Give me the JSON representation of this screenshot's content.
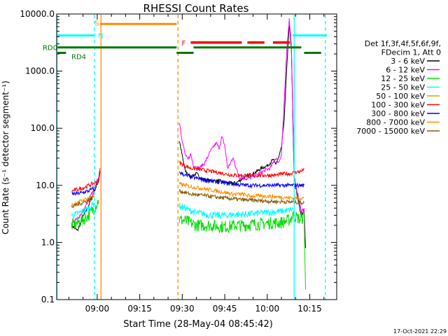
{
  "chart_data": {
    "type": "line",
    "title": "RHESSI Count Rates",
    "xlabel": "Start Time (28-May-04 08:45:42)",
    "ylabel": "Count Rate (s⁻¹ detector segment⁻¹)",
    "yscale": "log",
    "ylim": [
      0.1,
      10000
    ],
    "xlim": [
      "08:45:42",
      "10:24:30"
    ],
    "x_ticks": [
      "09:00",
      "09:15",
      "09:30",
      "09:45",
      "10:00",
      "10:15"
    ],
    "y_ticks": [
      "0.1",
      "1.0",
      "10.0",
      "100.0",
      "1000.0",
      "10000.0"
    ],
    "legend": {
      "position": "right",
      "header": [
        "Det 1f,3f,4f,5f,6f,9f,",
        "FDecim 1, Att 0"
      ],
      "entries": [
        {
          "name": "3 - 6 keV",
          "color": "#000000"
        },
        {
          "name": "6 - 12 keV",
          "color": "#ff00ff"
        },
        {
          "name": "12 - 25 keV",
          "color": "#00dd00"
        },
        {
          "name": "25 - 50 keV",
          "color": "#00ffff"
        },
        {
          "name": "50 - 100 keV",
          "color": "#b5b500"
        },
        {
          "name": "100 - 300 keV",
          "color": "#ff0000"
        },
        {
          "name": "300 - 800 keV",
          "color": "#0000ff"
        },
        {
          "name": "800 - 7000 keV",
          "color": "#ff8c00"
        },
        {
          "name": "7000 - 15000 keV",
          "color": "#8b5a00"
        }
      ]
    },
    "flags": {
      "saa": {
        "label": "S",
        "color": "#ff8c00",
        "start": "09:01",
        "end": "09:28"
      },
      "night": {
        "label": "N",
        "color": "#00ffff",
        "segments": [
          [
            "08:46",
            "08:59"
          ],
          [
            "10:09",
            "10:21"
          ]
        ]
      },
      "flare": {
        "label": "F",
        "color": "#ff0000",
        "segments": [
          [
            "09:33",
            "09:51"
          ],
          [
            "09:53",
            "09:59"
          ],
          [
            "10:02",
            "10:08"
          ]
        ]
      },
      "rd0": {
        "label": "RD0",
        "color": "#007700",
        "segments": [
          [
            "08:46",
            "09:28"
          ],
          [
            "09:34",
            "10:12"
          ]
        ]
      },
      "rd4": {
        "label": "RD4",
        "color": "#007700",
        "segments": [
          [
            "08:46",
            "08:49"
          ],
          [
            "09:28",
            "09:34"
          ],
          [
            "10:13",
            "10:19"
          ]
        ]
      }
    },
    "vlines": [
      {
        "t": "08:45:48",
        "color": "#00ffff",
        "style": "solid"
      },
      {
        "t": "08:59:00",
        "color": "#00ffff",
        "style": "dashed"
      },
      {
        "t": "09:01:20",
        "color": "#ff8c00",
        "style": "solid"
      },
      {
        "t": "09:28:30",
        "color": "#ff8c00",
        "style": "dashed"
      },
      {
        "t": "10:09:30",
        "color": "#00ffff",
        "style": "solid"
      },
      {
        "t": "10:20:30",
        "color": "#00ffff",
        "style": "dashed"
      }
    ],
    "series": [
      {
        "name": "3 - 6 keV",
        "color": "#000000",
        "points": [
          [
            "08:51:00",
            2.0
          ],
          [
            "08:53:00",
            1.6
          ],
          [
            "08:55:00",
            2.8
          ],
          [
            "08:57:00",
            4.5
          ],
          [
            "08:59:00",
            8
          ],
          [
            "09:00:30",
            12
          ],
          [
            "09:01:00",
            18
          ],
          [
            "09:29:00",
            60
          ],
          [
            "09:31:00",
            18
          ],
          [
            "09:33:00",
            14
          ],
          [
            "09:35:00",
            16
          ],
          [
            "09:37:00",
            13
          ],
          [
            "09:40:00",
            12
          ],
          [
            "09:43:00",
            12
          ],
          [
            "09:46:00",
            11
          ],
          [
            "09:49:00",
            11
          ],
          [
            "09:52:00",
            14
          ],
          [
            "09:55:00",
            16
          ],
          [
            "09:58:00",
            20
          ],
          [
            "10:00:00",
            22
          ],
          [
            "10:02:00",
            28
          ],
          [
            "10:03:00",
            24
          ],
          [
            "10:04:00",
            30
          ],
          [
            "10:05:00",
            45
          ],
          [
            "10:06:00",
            150
          ],
          [
            "10:07:00",
            1500
          ],
          [
            "10:07:45",
            6500
          ],
          [
            "10:08:30",
            2500
          ],
          [
            "10:09:30",
            12
          ],
          [
            "10:12:00",
            3.0
          ],
          [
            "10:13:00",
            3.5
          ],
          [
            "10:13:30",
            0.8
          ]
        ]
      },
      {
        "name": "6 - 12 keV",
        "color": "#ff00ff",
        "points": [
          [
            "08:51:00",
            2.2
          ],
          [
            "08:53:00",
            2.6
          ],
          [
            "08:55:00",
            3.5
          ],
          [
            "08:57:00",
            5.5
          ],
          [
            "08:59:00",
            9
          ],
          [
            "09:00:30",
            14
          ],
          [
            "09:01:00",
            20
          ],
          [
            "09:29:00",
            130
          ],
          [
            "09:30:00",
            60
          ],
          [
            "09:31:00",
            35
          ],
          [
            "09:32:00",
            28
          ],
          [
            "09:33:00",
            35
          ],
          [
            "09:34:00",
            22
          ],
          [
            "09:36:00",
            20
          ],
          [
            "09:38:00",
            25
          ],
          [
            "09:40:00",
            40
          ],
          [
            "09:42:00",
            55
          ],
          [
            "09:43:00",
            45
          ],
          [
            "09:44:00",
            70
          ],
          [
            "09:45:00",
            50
          ],
          [
            "09:46:00",
            20
          ],
          [
            "09:48:00",
            30
          ],
          [
            "09:50:00",
            14
          ],
          [
            "09:53:00",
            13
          ],
          [
            "09:56:00",
            15
          ],
          [
            "09:59:00",
            18
          ],
          [
            "10:01:00",
            20
          ],
          [
            "10:03:00",
            30
          ],
          [
            "10:04:00",
            25
          ],
          [
            "10:05:00",
            35
          ],
          [
            "10:06:00",
            300
          ],
          [
            "10:07:00",
            3000
          ],
          [
            "10:07:45",
            8000
          ],
          [
            "10:08:30",
            3000
          ],
          [
            "10:09:30",
            14
          ],
          [
            "10:12:00",
            3.5
          ],
          [
            "10:13:00",
            4
          ],
          [
            "10:13:30",
            1.0
          ]
        ]
      },
      {
        "name": "12 - 25 keV",
        "color": "#00dd00",
        "points": [
          [
            "08:51:00",
            2.0
          ],
          [
            "08:53:00",
            2.2
          ],
          [
            "08:55:00",
            2.5
          ],
          [
            "08:57:00",
            3.0
          ],
          [
            "08:59:00",
            4.0
          ],
          [
            "09:00:30",
            5.5
          ],
          [
            "09:29:00",
            2.5
          ],
          [
            "09:31:00",
            2.4
          ],
          [
            "09:33:00",
            2.2
          ],
          [
            "09:35:00",
            2.0
          ],
          [
            "09:37:00",
            2.0
          ],
          [
            "09:40:00",
            2.0
          ],
          [
            "09:43:00",
            1.9
          ],
          [
            "09:46:00",
            1.9
          ],
          [
            "09:49:00",
            2.0
          ],
          [
            "09:52:00",
            2.0
          ],
          [
            "09:55:00",
            2.1
          ],
          [
            "09:58:00",
            2.1
          ],
          [
            "10:01:00",
            2.2
          ],
          [
            "10:04:00",
            2.2
          ],
          [
            "10:06:00",
            2.3
          ],
          [
            "10:08:00",
            2.5
          ],
          [
            "10:09:00",
            3.0
          ],
          [
            "10:12:00",
            2.5
          ],
          [
            "10:13:00",
            3.0
          ],
          [
            "10:13:30",
            0.15
          ]
        ]
      },
      {
        "name": "25 - 50 keV",
        "color": "#00ffff",
        "points": [
          [
            "08:51:00",
            3.0
          ],
          [
            "08:53:00",
            3.2
          ],
          [
            "08:55:00",
            3.5
          ],
          [
            "08:57:00",
            4.0
          ],
          [
            "08:59:00",
            5.0
          ],
          [
            "09:29:00",
            4.3
          ],
          [
            "09:31:00",
            4.0
          ],
          [
            "09:33:00",
            3.6
          ],
          [
            "09:35:00",
            3.3
          ],
          [
            "09:37:00",
            3.2
          ],
          [
            "09:40:00",
            3.0
          ],
          [
            "09:43:00",
            3.0
          ],
          [
            "09:46:00",
            3.0
          ],
          [
            "09:49:00",
            3.1
          ],
          [
            "09:52:00",
            3.1
          ],
          [
            "09:55:00",
            3.2
          ],
          [
            "09:58:00",
            3.3
          ],
          [
            "10:01:00",
            3.4
          ],
          [
            "10:04:00",
            3.5
          ],
          [
            "10:07:00",
            3.6
          ],
          [
            "10:09:00",
            3.8
          ]
        ]
      },
      {
        "name": "100 - 300 keV",
        "color": "#ff0000",
        "points": [
          [
            "08:51:00",
            8
          ],
          [
            "08:53:00",
            8.5
          ],
          [
            "08:55:00",
            9
          ],
          [
            "08:57:00",
            10
          ],
          [
            "08:59:00",
            11
          ],
          [
            "09:00:30",
            12
          ],
          [
            "09:29:00",
            25
          ],
          [
            "09:31:00",
            22
          ],
          [
            "09:33:00",
            20
          ],
          [
            "09:36:00",
            19
          ],
          [
            "09:39:00",
            18
          ],
          [
            "09:42:00",
            17
          ],
          [
            "09:45:00",
            16
          ],
          [
            "09:48:00",
            15
          ],
          [
            "09:51:00",
            15
          ],
          [
            "09:54:00",
            15
          ],
          [
            "09:57:00",
            15
          ],
          [
            "10:00:00",
            15
          ],
          [
            "10:03:00",
            15
          ],
          [
            "10:06:00",
            16
          ],
          [
            "10:08:00",
            16
          ],
          [
            "10:10:00",
            17
          ],
          [
            "10:12:00",
            17.5
          ],
          [
            "10:13:00",
            20
          ]
        ]
      },
      {
        "name": "300 - 800 keV",
        "color": "#0000ff",
        "points": [
          [
            "08:51:00",
            7
          ],
          [
            "08:53:00",
            7.2
          ],
          [
            "08:55:00",
            7.5
          ],
          [
            "08:57:00",
            8
          ],
          [
            "08:59:00",
            9
          ],
          [
            "09:29:00",
            17
          ],
          [
            "09:31:00",
            15
          ],
          [
            "09:33:00",
            14
          ],
          [
            "09:36:00",
            13
          ],
          [
            "09:39:00",
            12
          ],
          [
            "09:42:00",
            11.5
          ],
          [
            "09:45:00",
            11
          ],
          [
            "09:48:00",
            10.5
          ],
          [
            "09:51:00",
            10.2
          ],
          [
            "09:54:00",
            10
          ],
          [
            "09:57:00",
            10
          ],
          [
            "10:00:00",
            10
          ],
          [
            "10:03:00",
            10
          ],
          [
            "10:06:00",
            10
          ],
          [
            "10:08:00",
            10
          ],
          [
            "10:10:00",
            10
          ],
          [
            "10:12:00",
            10
          ],
          [
            "10:13:00",
            10
          ]
        ]
      },
      {
        "name": "800 - 7000 keV",
        "color": "#ff8c00",
        "points": [
          [
            "08:51:00",
            4.5
          ],
          [
            "08:53:00",
            5
          ],
          [
            "08:55:00",
            5.5
          ],
          [
            "08:57:00",
            6
          ],
          [
            "08:59:00",
            7
          ],
          [
            "09:29:00",
            10.5
          ],
          [
            "09:31:00",
            10
          ],
          [
            "09:33:00",
            9.5
          ],
          [
            "09:36:00",
            9
          ],
          [
            "09:39:00",
            8.5
          ],
          [
            "09:42:00",
            8
          ],
          [
            "09:45:00",
            7.5
          ],
          [
            "09:48:00",
            7
          ],
          [
            "09:51:00",
            7
          ],
          [
            "09:54:00",
            6.5
          ],
          [
            "09:57:00",
            6.5
          ],
          [
            "10:00:00",
            6.5
          ],
          [
            "10:03:00",
            6.3
          ],
          [
            "10:06:00",
            6.2
          ],
          [
            "10:08:00",
            6
          ],
          [
            "10:10:00",
            6
          ],
          [
            "10:12:00",
            6
          ],
          [
            "10:13:00",
            6
          ]
        ]
      },
      {
        "name": "7000 - 15000 keV",
        "color": "#8b5a00",
        "points": [
          [
            "08:51:00",
            4.2
          ],
          [
            "08:53:00",
            4.6
          ],
          [
            "08:55:00",
            5
          ],
          [
            "08:57:00",
            5.5
          ],
          [
            "08:59:00",
            6.5
          ],
          [
            "09:29:00",
            8
          ],
          [
            "09:31:00",
            7.5
          ],
          [
            "09:33:00",
            7
          ],
          [
            "09:36:00",
            6.8
          ],
          [
            "09:39:00",
            6.5
          ],
          [
            "09:42:00",
            6.2
          ],
          [
            "09:45:00",
            6
          ],
          [
            "09:48:00",
            5.8
          ],
          [
            "09:51:00",
            5.6
          ],
          [
            "09:54:00",
            5.5
          ],
          [
            "09:57:00",
            5.4
          ],
          [
            "10:00:00",
            5.3
          ],
          [
            "10:03:00",
            5.2
          ],
          [
            "10:06:00",
            5.2
          ],
          [
            "10:08:00",
            5.1
          ],
          [
            "10:10:00",
            5.1
          ],
          [
            "10:12:00",
            5
          ],
          [
            "10:13:00",
            5
          ]
        ]
      }
    ]
  },
  "footer": {
    "date_stamp": "17-Oct-2021 22:29"
  }
}
